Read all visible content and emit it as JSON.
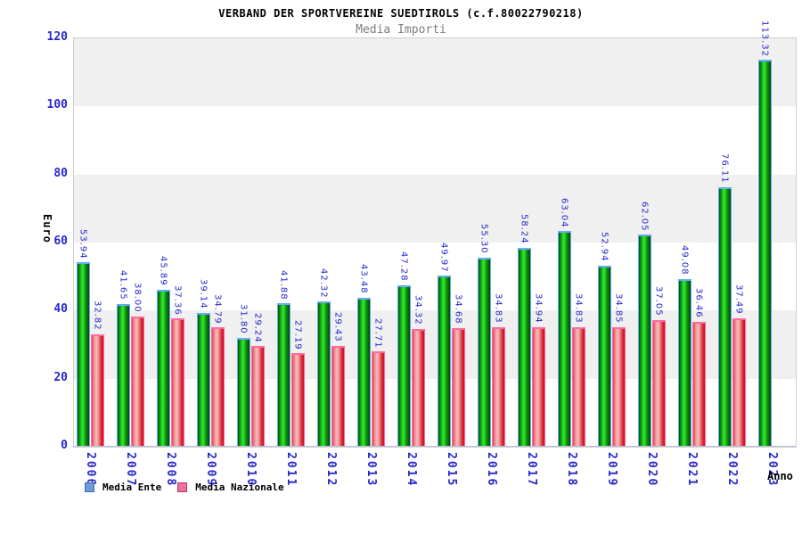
{
  "title": "VERBAND DER SPORTVEREINE SUEDTIROLS (c.f.80022790218)",
  "subtitle": "Media Importi",
  "axes": {
    "y_label": "Euro",
    "x_label": "Anno",
    "y_ticks": [
      0,
      20,
      40,
      60,
      80,
      100,
      120
    ],
    "ylim": [
      0,
      120
    ]
  },
  "legend": [
    {
      "label": "Media Ente",
      "swatch_color": "#6b9bd8"
    },
    {
      "label": "Media Nazionale",
      "swatch_color": "#ee6f9d"
    }
  ],
  "colors": {
    "label_blue": "#2626cc",
    "bar_green": "#2be42b",
    "bar_red": "#cf1020",
    "band_gray": "#f0f0f0",
    "subtitle_gray": "#7d7d7d"
  },
  "chart_data": {
    "type": "bar",
    "title": "VERBAND DER SPORTVEREINE SUEDTIROLS (c.f.80022790218)",
    "subtitle": "Media Importi",
    "xlabel": "Anno",
    "ylabel": "Euro",
    "ylim": [
      0,
      120
    ],
    "grid": "alternating horizontal bands every 20 units",
    "legend_position": "bottom-left",
    "categories": [
      "2006",
      "2007",
      "2008",
      "2009",
      "2010",
      "2011",
      "2012",
      "2013",
      "2014",
      "2015",
      "2016",
      "2017",
      "2018",
      "2019",
      "2020",
      "2021",
      "2022",
      "2023"
    ],
    "series": [
      {
        "name": "Media Ente",
        "bar_color": "green gradient",
        "values": [
          53.94,
          41.65,
          45.89,
          39.14,
          31.8,
          41.88,
          42.32,
          43.48,
          47.28,
          49.97,
          55.3,
          58.24,
          63.04,
          52.94,
          62.05,
          49.08,
          76.11,
          113.32
        ]
      },
      {
        "name": "Media Nazionale",
        "bar_color": "red gradient",
        "values": [
          32.82,
          38.0,
          37.36,
          34.79,
          29.24,
          27.19,
          29.43,
          27.71,
          34.32,
          34.68,
          34.83,
          34.94,
          34.83,
          34.85,
          37.05,
          36.46,
          37.49,
          null
        ]
      }
    ]
  }
}
